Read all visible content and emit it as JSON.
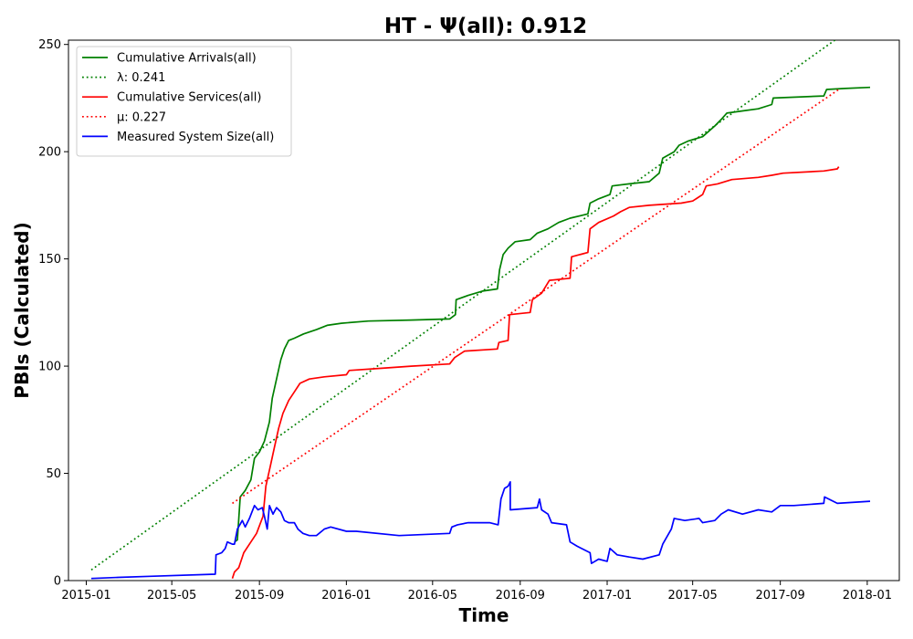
{
  "chart_data": {
    "type": "line",
    "title": "HT -  Ψ(all): 0.912",
    "xlabel": "Time",
    "ylabel": "PBIs (Calculated)",
    "ylim": [
      0,
      252
    ],
    "xlim": [
      "2014-12-07",
      "2018-02-15"
    ],
    "x_ticks": [
      "2015-01",
      "2015-05",
      "2015-09",
      "2016-01",
      "2016-05",
      "2016-09",
      "2017-01",
      "2017-05",
      "2017-09",
      "2018-01"
    ],
    "y_ticks": [
      0,
      50,
      100,
      150,
      200,
      250
    ],
    "legend_position": "top-left",
    "series": [
      {
        "name": "Cumulative Arrivals(all)",
        "color": "#008000",
        "style": "solid",
        "points": [
          [
            "2015-07-28",
            18
          ],
          [
            "2015-08-01",
            19
          ],
          [
            "2015-08-05",
            39
          ],
          [
            "2015-08-12",
            42
          ],
          [
            "2015-08-20",
            47
          ],
          [
            "2015-08-25",
            57
          ],
          [
            "2015-09-01",
            60
          ],
          [
            "2015-09-08",
            65
          ],
          [
            "2015-09-15",
            74
          ],
          [
            "2015-09-19",
            85
          ],
          [
            "2015-09-25",
            94
          ],
          [
            "2015-10-01",
            103
          ],
          [
            "2015-10-06",
            108
          ],
          [
            "2015-10-12",
            112
          ],
          [
            "2015-10-20",
            113
          ],
          [
            "2015-11-02",
            115
          ],
          [
            "2015-11-20",
            117
          ],
          [
            "2015-12-05",
            119
          ],
          [
            "2015-12-25",
            120
          ],
          [
            "2016-02-01",
            121
          ],
          [
            "2016-04-01",
            121.5
          ],
          [
            "2016-05-25",
            122
          ],
          [
            "2016-06-02",
            124
          ],
          [
            "2016-06-03",
            131
          ],
          [
            "2016-06-20",
            133
          ],
          [
            "2016-07-10",
            135
          ],
          [
            "2016-07-31",
            136
          ],
          [
            "2016-08-03",
            145
          ],
          [
            "2016-08-08",
            152
          ],
          [
            "2016-08-15",
            155
          ],
          [
            "2016-08-25",
            158
          ],
          [
            "2016-09-15",
            159
          ],
          [
            "2016-09-25",
            162
          ],
          [
            "2016-10-10",
            164
          ],
          [
            "2016-10-25",
            167
          ],
          [
            "2016-11-10",
            169
          ],
          [
            "2016-12-05",
            171
          ],
          [
            "2016-12-08",
            176
          ],
          [
            "2016-12-20",
            178
          ],
          [
            "2017-01-05",
            180
          ],
          [
            "2017-01-08",
            184
          ],
          [
            "2017-02-01",
            185
          ],
          [
            "2017-03-01",
            186
          ],
          [
            "2017-03-15",
            190
          ],
          [
            "2017-03-20",
            197
          ],
          [
            "2017-04-05",
            200
          ],
          [
            "2017-04-12",
            203
          ],
          [
            "2017-04-25",
            205
          ],
          [
            "2017-05-15",
            207
          ],
          [
            "2017-06-01",
            212
          ],
          [
            "2017-06-10",
            215
          ],
          [
            "2017-06-18",
            218
          ],
          [
            "2017-07-10",
            219
          ],
          [
            "2017-08-01",
            220
          ],
          [
            "2017-08-20",
            222
          ],
          [
            "2017-08-22",
            225
          ],
          [
            "2017-11-01",
            226
          ],
          [
            "2017-11-05",
            229
          ],
          [
            "2017-12-01",
            229.5
          ],
          [
            "2018-01-05",
            230
          ]
        ]
      },
      {
        "name": "λ: 0.241",
        "color": "#008000",
        "style": "dotted",
        "points": [
          [
            "2015-01-08",
            5
          ],
          [
            "2017-11-25",
            254
          ]
        ]
      },
      {
        "name": "Cumulative Services(all)",
        "color": "#ff0000",
        "style": "solid",
        "points": [
          [
            "2015-07-25",
            1
          ],
          [
            "2015-07-28",
            4
          ],
          [
            "2015-08-03",
            6
          ],
          [
            "2015-08-10",
            13
          ],
          [
            "2015-08-20",
            18
          ],
          [
            "2015-08-28",
            22
          ],
          [
            "2015-09-06",
            30
          ],
          [
            "2015-09-10",
            44
          ],
          [
            "2015-09-16",
            53
          ],
          [
            "2015-09-22",
            62
          ],
          [
            "2015-09-28",
            71
          ],
          [
            "2015-10-04",
            78
          ],
          [
            "2015-10-12",
            84
          ],
          [
            "2015-10-20",
            88
          ],
          [
            "2015-10-28",
            92
          ],
          [
            "2015-11-10",
            94
          ],
          [
            "2015-12-01",
            95
          ],
          [
            "2016-01-01",
            96
          ],
          [
            "2016-01-05",
            98
          ],
          [
            "2016-02-20",
            99
          ],
          [
            "2016-04-01",
            100
          ],
          [
            "2016-05-25",
            101
          ],
          [
            "2016-06-01",
            104
          ],
          [
            "2016-06-15",
            107
          ],
          [
            "2016-07-31",
            108
          ],
          [
            "2016-08-02",
            111
          ],
          [
            "2016-08-15",
            112
          ],
          [
            "2016-08-17",
            124
          ],
          [
            "2016-09-15",
            125
          ],
          [
            "2016-09-18",
            131
          ],
          [
            "2016-10-01",
            134
          ],
          [
            "2016-10-12",
            140
          ],
          [
            "2016-11-10",
            141
          ],
          [
            "2016-11-12",
            151
          ],
          [
            "2016-12-05",
            153
          ],
          [
            "2016-12-08",
            164
          ],
          [
            "2016-12-20",
            167
          ],
          [
            "2017-01-10",
            170
          ],
          [
            "2017-01-20",
            172
          ],
          [
            "2017-02-01",
            174
          ],
          [
            "2017-03-01",
            175
          ],
          [
            "2017-04-15",
            176
          ],
          [
            "2017-05-01",
            177
          ],
          [
            "2017-05-15",
            180
          ],
          [
            "2017-05-20",
            184
          ],
          [
            "2017-06-05",
            185
          ],
          [
            "2017-06-25",
            187
          ],
          [
            "2017-08-01",
            188
          ],
          [
            "2017-08-20",
            189
          ],
          [
            "2017-09-05",
            190
          ],
          [
            "2017-11-01",
            191
          ],
          [
            "2017-11-20",
            192
          ],
          [
            "2017-11-22",
            193
          ]
        ]
      },
      {
        "name": "μ: 0.227",
        "color": "#ff0000",
        "style": "dotted",
        "points": [
          [
            "2015-07-25",
            36
          ],
          [
            "2017-11-22",
            229
          ]
        ]
      },
      {
        "name": "Measured System Size(all)",
        "color": "#0000ff",
        "style": "solid",
        "points": [
          [
            "2015-01-08",
            1
          ],
          [
            "2015-02-15",
            1.5
          ],
          [
            "2015-04-01",
            2
          ],
          [
            "2015-07-01",
            3
          ],
          [
            "2015-07-02",
            12
          ],
          [
            "2015-07-10",
            13
          ],
          [
            "2015-07-15",
            15
          ],
          [
            "2015-07-18",
            18
          ],
          [
            "2015-07-25",
            17
          ],
          [
            "2015-07-28",
            17
          ],
          [
            "2015-08-01",
            24
          ],
          [
            "2015-08-08",
            28
          ],
          [
            "2015-08-12",
            25
          ],
          [
            "2015-08-18",
            29
          ],
          [
            "2015-08-25",
            35
          ],
          [
            "2015-08-30",
            33
          ],
          [
            "2015-09-05",
            34
          ],
          [
            "2015-09-08",
            30
          ],
          [
            "2015-09-12",
            24
          ],
          [
            "2015-09-15",
            35
          ],
          [
            "2015-09-20",
            31
          ],
          [
            "2015-09-25",
            34
          ],
          [
            "2015-10-01",
            32
          ],
          [
            "2015-10-06",
            28
          ],
          [
            "2015-10-12",
            27
          ],
          [
            "2015-10-20",
            27
          ],
          [
            "2015-10-25",
            24
          ],
          [
            "2015-11-01",
            22
          ],
          [
            "2015-11-10",
            21
          ],
          [
            "2015-11-20",
            21
          ],
          [
            "2015-12-01",
            24
          ],
          [
            "2015-12-10",
            25
          ],
          [
            "2016-01-01",
            23
          ],
          [
            "2016-01-15",
            23
          ],
          [
            "2016-03-15",
            21
          ],
          [
            "2016-05-25",
            22
          ],
          [
            "2016-05-28",
            25
          ],
          [
            "2016-06-05",
            26
          ],
          [
            "2016-06-20",
            27
          ],
          [
            "2016-07-20",
            27
          ],
          [
            "2016-08-01",
            26
          ],
          [
            "2016-08-05",
            38
          ],
          [
            "2016-08-10",
            43
          ],
          [
            "2016-08-15",
            44
          ],
          [
            "2016-08-18",
            46
          ],
          [
            "2016-08-18",
            33
          ],
          [
            "2016-09-25",
            34
          ],
          [
            "2016-09-28",
            38
          ],
          [
            "2016-10-01",
            33
          ],
          [
            "2016-10-10",
            31
          ],
          [
            "2016-10-15",
            27
          ],
          [
            "2016-11-05",
            26
          ],
          [
            "2016-11-10",
            18
          ],
          [
            "2016-11-20",
            16
          ],
          [
            "2016-12-08",
            13
          ],
          [
            "2016-12-10",
            8
          ],
          [
            "2016-12-20",
            10
          ],
          [
            "2017-01-01",
            9
          ],
          [
            "2017-01-05",
            15
          ],
          [
            "2017-01-15",
            12
          ],
          [
            "2017-02-01",
            11
          ],
          [
            "2017-02-20",
            10
          ],
          [
            "2017-03-15",
            12
          ],
          [
            "2017-03-20",
            17
          ],
          [
            "2017-04-01",
            24
          ],
          [
            "2017-04-05",
            29
          ],
          [
            "2017-04-20",
            28
          ],
          [
            "2017-05-10",
            29
          ],
          [
            "2017-05-15",
            27
          ],
          [
            "2017-06-01",
            28
          ],
          [
            "2017-06-10",
            31
          ],
          [
            "2017-06-20",
            33
          ],
          [
            "2017-07-10",
            31
          ],
          [
            "2017-08-01",
            33
          ],
          [
            "2017-08-20",
            32
          ],
          [
            "2017-09-01",
            35
          ],
          [
            "2017-09-20",
            35
          ],
          [
            "2017-11-01",
            36
          ],
          [
            "2017-11-02",
            39
          ],
          [
            "2017-11-20",
            36
          ],
          [
            "2018-01-05",
            37
          ]
        ]
      }
    ]
  }
}
